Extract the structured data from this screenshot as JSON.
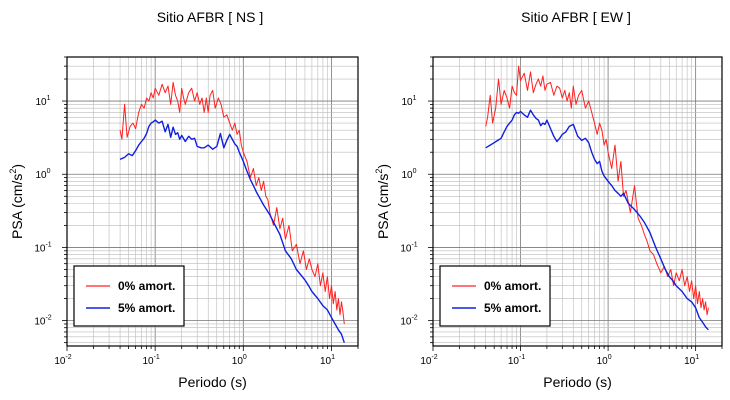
{
  "chart_data": [
    {
      "type": "line",
      "title": "Sitio AFBR [ NS ]",
      "xlabel": "Periodo (s)",
      "ylabel": "PSA (cm/s",
      "ylabel_sup": "2",
      "ylabel_end": ")",
      "x_scale": "log",
      "y_scale": "log",
      "xlim": [
        0.01,
        20
      ],
      "ylim": [
        0.0045,
        40
      ],
      "grid": true,
      "legend_position": "bottom-left",
      "x_ticks": [
        {
          "base": "10",
          "exp": "-2"
        },
        {
          "base": "10",
          "exp": "-1"
        },
        {
          "base": "10",
          "exp": "0"
        },
        {
          "base": "10",
          "exp": "1"
        }
      ],
      "y_ticks": [
        {
          "base": "10",
          "exp": "-2"
        },
        {
          "base": "10",
          "exp": "-1"
        },
        {
          "base": "10",
          "exp": "0"
        },
        {
          "base": "10",
          "exp": "1"
        }
      ],
      "series": [
        {
          "name": "0% amort.",
          "color": "#ff2020",
          "x": [
            0.04,
            0.042,
            0.045,
            0.048,
            0.052,
            0.056,
            0.06,
            0.065,
            0.07,
            0.075,
            0.08,
            0.085,
            0.09,
            0.095,
            0.1,
            0.11,
            0.12,
            0.13,
            0.14,
            0.15,
            0.16,
            0.17,
            0.18,
            0.19,
            0.2,
            0.21,
            0.22,
            0.24,
            0.26,
            0.28,
            0.3,
            0.32,
            0.34,
            0.36,
            0.38,
            0.4,
            0.42,
            0.45,
            0.48,
            0.52,
            0.56,
            0.6,
            0.65,
            0.7,
            0.75,
            0.8,
            0.85,
            0.9,
            0.95,
            1.0,
            1.1,
            1.2,
            1.3,
            1.4,
            1.5,
            1.6,
            1.7,
            1.8,
            1.9,
            2.0,
            2.2,
            2.4,
            2.6,
            2.8,
            3.0,
            3.3,
            3.6,
            4.0,
            4.4,
            4.8,
            5.2,
            5.6,
            6.0,
            6.5,
            7.0,
            7.5,
            8.0,
            8.5,
            9.0,
            9.5,
            10.0,
            10.5,
            11.0,
            11.5,
            12.0,
            12.5,
            13.0,
            13.5,
            14.0
          ],
          "values": [
            4.0,
            3.0,
            9.0,
            3.2,
            4.5,
            5.0,
            4.2,
            7.0,
            9.0,
            8.0,
            11.0,
            10.0,
            13.0,
            11.0,
            15.0,
            12.0,
            17.0,
            13.0,
            16.0,
            9.0,
            18.0,
            12.0,
            10.0,
            7.0,
            15.0,
            11.0,
            9.0,
            13.0,
            15.0,
            10.0,
            13.0,
            9.0,
            11.0,
            7.0,
            11.0,
            7.0,
            12.0,
            14.0,
            8.0,
            11.0,
            9.0,
            6.0,
            6.5,
            5.0,
            4.0,
            5.0,
            3.5,
            4.0,
            2.5,
            2.0,
            1.5,
            0.9,
            1.2,
            0.7,
            0.9,
            0.6,
            0.8,
            0.5,
            0.45,
            0.3,
            0.2,
            0.35,
            0.18,
            0.25,
            0.13,
            0.2,
            0.09,
            0.11,
            0.06,
            0.09,
            0.05,
            0.07,
            0.05,
            0.04,
            0.06,
            0.03,
            0.045,
            0.025,
            0.04,
            0.02,
            0.03,
            0.017,
            0.025,
            0.014,
            0.02,
            0.012,
            0.018,
            0.013,
            0.009
          ]
        },
        {
          "name": "5% amort.",
          "color": "#1020e0",
          "x": [
            0.04,
            0.045,
            0.05,
            0.055,
            0.06,
            0.065,
            0.07,
            0.075,
            0.08,
            0.085,
            0.09,
            0.095,
            0.1,
            0.11,
            0.12,
            0.13,
            0.14,
            0.15,
            0.16,
            0.17,
            0.18,
            0.19,
            0.2,
            0.22,
            0.24,
            0.26,
            0.28,
            0.3,
            0.33,
            0.36,
            0.4,
            0.45,
            0.5,
            0.55,
            0.6,
            0.65,
            0.7,
            0.75,
            0.8,
            0.85,
            0.9,
            1.0,
            1.1,
            1.2,
            1.3,
            1.4,
            1.5,
            1.7,
            2.0,
            2.3,
            2.6,
            3.0,
            3.5,
            4.0,
            4.5,
            5.0,
            5.5,
            6.0,
            7.0,
            8.0,
            9.0,
            10.0,
            11.0,
            12.0,
            13.0,
            14.0
          ],
          "values": [
            1.6,
            1.7,
            1.9,
            1.8,
            2.1,
            2.5,
            2.8,
            3.1,
            3.6,
            4.5,
            5.0,
            5.2,
            5.5,
            5.0,
            5.3,
            3.8,
            4.8,
            3.2,
            4.4,
            3.5,
            3.7,
            3.0,
            3.4,
            2.8,
            3.3,
            3.0,
            3.1,
            2.4,
            2.3,
            2.3,
            2.5,
            2.2,
            2.4,
            3.6,
            2.3,
            2.9,
            3.5,
            3.0,
            2.6,
            2.4,
            2.0,
            1.5,
            1.1,
            0.85,
            0.7,
            0.58,
            0.5,
            0.38,
            0.28,
            0.2,
            0.15,
            0.09,
            0.07,
            0.05,
            0.042,
            0.036,
            0.03,
            0.025,
            0.02,
            0.016,
            0.014,
            0.011,
            0.009,
            0.0075,
            0.0065,
            0.005
          ]
        }
      ]
    },
    {
      "type": "line",
      "title": "Sitio AFBR [ EW ]",
      "xlabel": "Periodo (s)",
      "ylabel": "PSA (cm/s",
      "ylabel_sup": "2",
      "ylabel_end": ")",
      "x_scale": "log",
      "y_scale": "log",
      "xlim": [
        0.01,
        20
      ],
      "ylim": [
        0.0045,
        40
      ],
      "grid": true,
      "legend_position": "bottom-left",
      "x_ticks": [
        {
          "base": "10",
          "exp": "-2"
        },
        {
          "base": "10",
          "exp": "-1"
        },
        {
          "base": "10",
          "exp": "0"
        },
        {
          "base": "10",
          "exp": "1"
        }
      ],
      "y_ticks": [
        {
          "base": "10",
          "exp": "-2"
        },
        {
          "base": "10",
          "exp": "-1"
        },
        {
          "base": "10",
          "exp": "0"
        },
        {
          "base": "10",
          "exp": "1"
        }
      ],
      "series": [
        {
          "name": "0% amort.",
          "color": "#ff2020",
          "x": [
            0.04,
            0.042,
            0.045,
            0.048,
            0.052,
            0.056,
            0.06,
            0.065,
            0.07,
            0.075,
            0.08,
            0.085,
            0.09,
            0.095,
            0.1,
            0.11,
            0.12,
            0.13,
            0.14,
            0.15,
            0.16,
            0.17,
            0.18,
            0.19,
            0.2,
            0.22,
            0.24,
            0.26,
            0.28,
            0.3,
            0.32,
            0.34,
            0.36,
            0.38,
            0.4,
            0.43,
            0.46,
            0.5,
            0.55,
            0.6,
            0.65,
            0.7,
            0.75,
            0.8,
            0.85,
            0.9,
            0.95,
            1.0,
            1.1,
            1.2,
            1.3,
            1.4,
            1.5,
            1.6,
            1.8,
            2.0,
            2.2,
            2.4,
            2.6,
            2.8,
            3.0,
            3.3,
            3.6,
            4.0,
            4.4,
            4.8,
            5.2,
            5.6,
            6.0,
            6.5,
            7.0,
            7.5,
            8.0,
            8.5,
            9.0,
            9.5,
            10.0,
            10.5,
            11.0,
            11.5,
            12.0,
            12.5,
            13.0,
            13.5,
            14.0
          ],
          "values": [
            4.5,
            6.0,
            12.0,
            5.0,
            8.0,
            20.0,
            9.0,
            14.0,
            11.0,
            8.0,
            16.0,
            13.0,
            12.0,
            30.0,
            19.0,
            24.0,
            14.0,
            25.0,
            13.0,
            17.0,
            20.0,
            16.0,
            22.0,
            14.0,
            17.0,
            18.0,
            12.0,
            16.0,
            15.0,
            11.0,
            14.0,
            10.0,
            13.0,
            8.0,
            16.0,
            9.0,
            12.0,
            14.0,
            8.0,
            10.0,
            7.0,
            5.0,
            3.5,
            5.0,
            4.0,
            2.5,
            3.0,
            2.0,
            1.2,
            2.5,
            0.8,
            1.5,
            0.5,
            0.6,
            0.3,
            0.7,
            0.25,
            0.2,
            0.15,
            0.12,
            0.09,
            0.08,
            0.06,
            0.045,
            0.055,
            0.04,
            0.05,
            0.03,
            0.045,
            0.035,
            0.05,
            0.03,
            0.04,
            0.025,
            0.035,
            0.02,
            0.03,
            0.017,
            0.025,
            0.015,
            0.02,
            0.014,
            0.018,
            0.012,
            0.015
          ]
        },
        {
          "name": "5% amort.",
          "color": "#1020e0",
          "x": [
            0.04,
            0.045,
            0.05,
            0.055,
            0.06,
            0.065,
            0.07,
            0.075,
            0.08,
            0.085,
            0.09,
            0.095,
            0.1,
            0.11,
            0.12,
            0.13,
            0.14,
            0.15,
            0.16,
            0.17,
            0.18,
            0.19,
            0.2,
            0.22,
            0.24,
            0.26,
            0.28,
            0.3,
            0.33,
            0.36,
            0.4,
            0.45,
            0.5,
            0.55,
            0.6,
            0.65,
            0.7,
            0.75,
            0.8,
            0.85,
            0.9,
            1.0,
            1.1,
            1.2,
            1.3,
            1.4,
            1.5,
            1.7,
            2.0,
            2.3,
            2.6,
            3.0,
            3.5,
            4.0,
            4.5,
            5.0,
            5.5,
            6.0,
            7.0,
            8.0,
            9.0,
            10.0,
            11.0,
            12.0,
            13.0,
            14.0
          ],
          "values": [
            2.3,
            2.5,
            2.7,
            2.9,
            3.1,
            3.8,
            4.5,
            5.0,
            5.5,
            6.5,
            7.0,
            6.8,
            7.2,
            6.5,
            6.0,
            7.5,
            6.5,
            5.8,
            5.5,
            4.6,
            5.0,
            4.8,
            5.5,
            4.2,
            3.3,
            2.8,
            3.1,
            3.5,
            3.8,
            4.5,
            4.8,
            3.3,
            2.9,
            3.1,
            2.7,
            2.0,
            1.6,
            1.4,
            1.5,
            1.1,
            0.95,
            0.8,
            0.7,
            0.6,
            0.55,
            0.5,
            0.55,
            0.4,
            0.33,
            0.27,
            0.22,
            0.16,
            0.1,
            0.07,
            0.05,
            0.04,
            0.035,
            0.03,
            0.025,
            0.02,
            0.018,
            0.015,
            0.011,
            0.0095,
            0.0082,
            0.0075
          ]
        }
      ]
    }
  ]
}
